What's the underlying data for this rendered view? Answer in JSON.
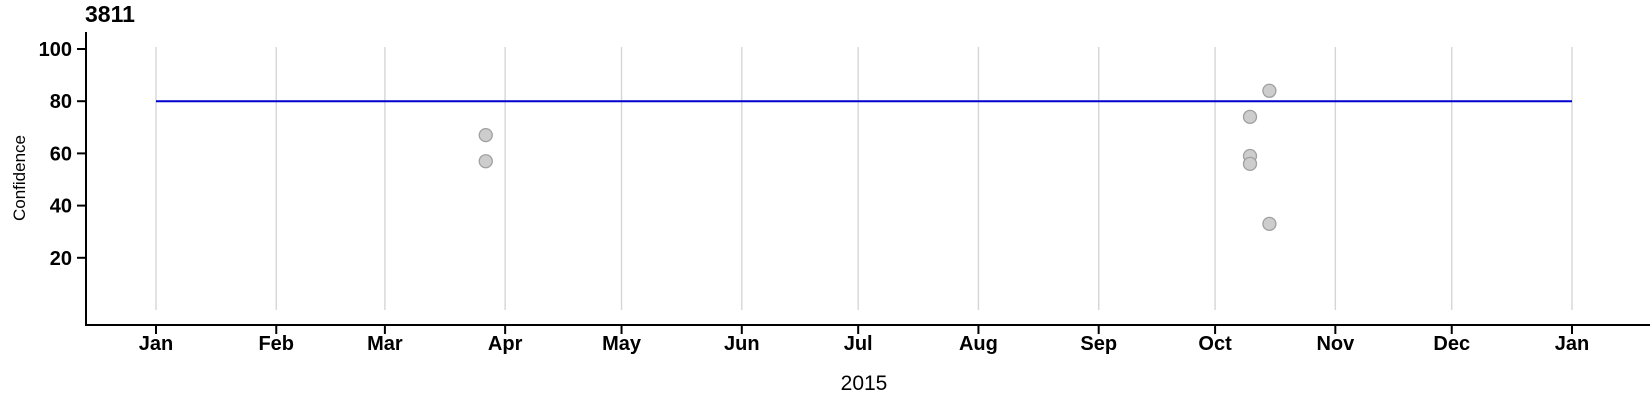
{
  "chart_data": {
    "type": "scatter",
    "title": "3811",
    "xlabel": "2015",
    "ylabel": "Confidence",
    "x_axis": {
      "kind": "time",
      "range_days": [
        0,
        365
      ],
      "month_ticks": [
        {
          "label": "Jan",
          "day": 0
        },
        {
          "label": "Feb",
          "day": 31
        },
        {
          "label": "Mar",
          "day": 59
        },
        {
          "label": "Apr",
          "day": 90
        },
        {
          "label": "May",
          "day": 120
        },
        {
          "label": "Jun",
          "day": 151
        },
        {
          "label": "Jul",
          "day": 181
        },
        {
          "label": "Aug",
          "day": 212
        },
        {
          "label": "Sep",
          "day": 243
        },
        {
          "label": "Oct",
          "day": 273
        },
        {
          "label": "Nov",
          "day": 304
        },
        {
          "label": "Dec",
          "day": 334
        },
        {
          "label": "Jan",
          "day": 365
        }
      ]
    },
    "y_axis": {
      "ticks": [
        20,
        40,
        60,
        80,
        100
      ],
      "ylim": [
        -6,
        106
      ]
    },
    "grid": "vertical-months-only",
    "legend": "none",
    "reference_line": {
      "y": 80
    },
    "points": [
      {
        "date": "2015-03-27",
        "day": 85,
        "confidence": 67
      },
      {
        "date": "2015-03-27",
        "day": 85,
        "confidence": 57
      },
      {
        "date": "2015-10-09",
        "day": 282,
        "confidence": 74
      },
      {
        "date": "2015-10-09",
        "day": 282,
        "confidence": 59
      },
      {
        "date": "2015-10-09",
        "day": 282,
        "confidence": 56
      },
      {
        "date": "2015-10-14",
        "day": 287,
        "confidence": 84
      },
      {
        "date": "2015-10-14",
        "day": 287,
        "confidence": 33
      }
    ],
    "colors": {
      "reference_line": "#0000CC",
      "point_fill": "#CDCDCD",
      "point_stroke": "#A0A0A0",
      "gridline": "#D6D6D6",
      "axis": "#000000",
      "text": "#000000",
      "background": "#FFFFFF"
    }
  }
}
